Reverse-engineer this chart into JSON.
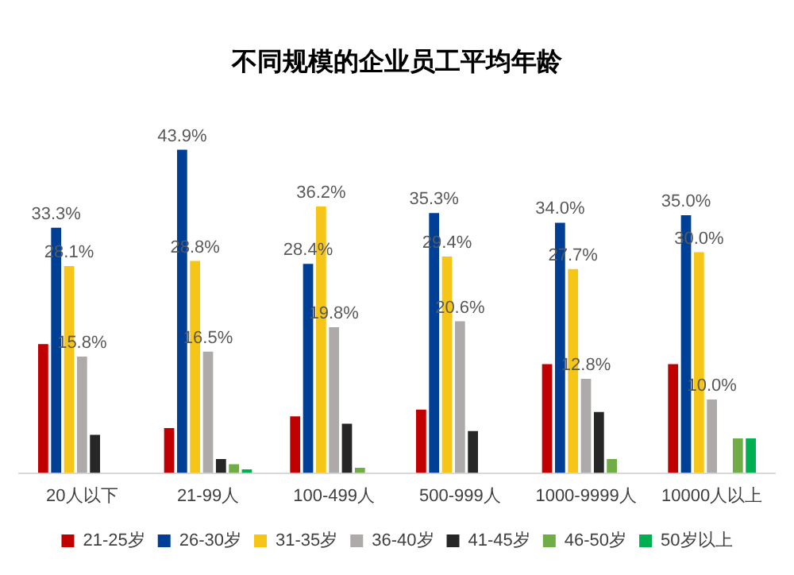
{
  "chart_data": {
    "type": "bar",
    "title": "不同规模的企业员工平均年龄",
    "categories": [
      "20人以下",
      "21-99人",
      "100-499人",
      "500-999人",
      "1000-9999人",
      "10000人以上"
    ],
    "series": [
      {
        "name": "21-25岁",
        "color": "#c00000",
        "values": [
          17.5,
          6.1,
          7.7,
          8.6,
          14.8,
          14.8
        ]
      },
      {
        "name": "26-30岁",
        "color": "#003f96",
        "values": [
          33.3,
          43.9,
          28.4,
          35.3,
          34.0,
          35.0
        ],
        "value_labels": [
          "33.3%",
          "43.9%",
          "28.4%",
          "35.3%",
          "34.0%",
          "35.0%"
        ]
      },
      {
        "name": "31-35岁",
        "color": "#f5c518",
        "values": [
          28.1,
          28.8,
          36.2,
          29.4,
          27.7,
          30.0
        ],
        "value_labels": [
          "28.1%",
          "28.8%",
          "36.2%",
          "29.4%",
          "27.7%",
          "30.0%"
        ]
      },
      {
        "name": "36-40岁",
        "color": "#aeaaaa",
        "values": [
          15.8,
          16.5,
          19.8,
          20.6,
          12.8,
          10.0
        ],
        "value_labels": [
          "15.8%",
          "16.5%",
          "19.8%",
          "20.6%",
          "12.8%",
          "10.0%"
        ]
      },
      {
        "name": "41-45岁",
        "color": "#262626",
        "values": [
          5.2,
          1.9,
          6.7,
          5.7,
          8.3,
          null
        ]
      },
      {
        "name": "46-50岁",
        "color": "#70ad47",
        "values": [
          null,
          1.2,
          0.7,
          null,
          1.9,
          4.7
        ]
      },
      {
        "name": "50岁以上",
        "color": "#00b050",
        "values": [
          null,
          0.5,
          null,
          null,
          null,
          4.7
        ]
      }
    ],
    "legend": "bottom",
    "grid": false
  }
}
